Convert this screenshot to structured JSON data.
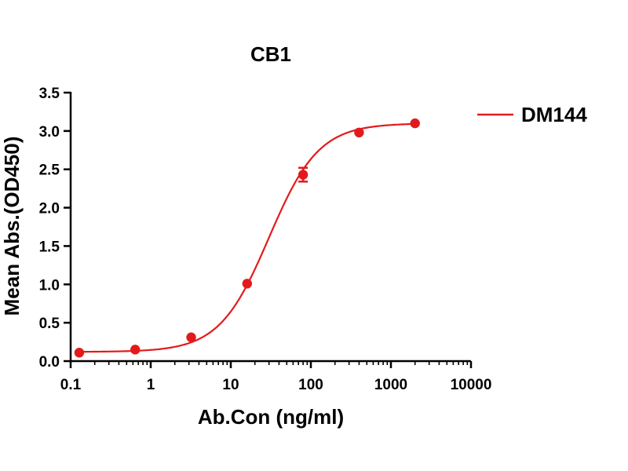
{
  "chart_data": {
    "type": "scatter",
    "title": "CB1",
    "xlabel": "Ab.Con (ng/ml)",
    "ylabel": "Mean Abs.(OD450)",
    "x_scale": "log",
    "xlim": [
      0.1,
      10000
    ],
    "ylim": [
      0,
      3.5
    ],
    "x_ticks": [
      0.1,
      1,
      10,
      100,
      1000,
      10000
    ],
    "x_tick_labels": [
      "0.1",
      "1",
      "10",
      "100",
      "1000",
      "10000"
    ],
    "y_ticks": [
      0,
      0.5,
      1,
      1.5,
      2,
      2.5,
      3,
      3.5
    ],
    "y_tick_labels": [
      "0.0",
      "0.5",
      "1.0",
      "1.5",
      "2.0",
      "2.5",
      "3.0",
      "3.5"
    ],
    "grid": false,
    "legend_position": "top-right",
    "color": "#e31a1c",
    "series": [
      {
        "name": "DM144",
        "x": [
          0.128,
          0.64,
          3.2,
          16,
          80,
          400,
          2000
        ],
        "y": [
          0.11,
          0.15,
          0.31,
          1.01,
          2.43,
          2.98,
          3.1
        ],
        "error": [
          0.01,
          0.01,
          0.02,
          0.02,
          0.09,
          0.02,
          0.02
        ],
        "fit": "4PL",
        "fit_params": {
          "bottom": 0.12,
          "top": 3.1,
          "ec50": 30,
          "hill": 1.4
        }
      }
    ]
  }
}
